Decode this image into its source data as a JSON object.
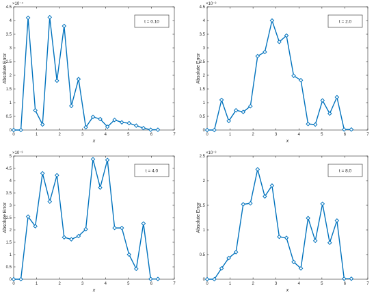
{
  "figure": {
    "colors": {
      "series": "#0072BD",
      "axis": "#262626",
      "background": "#ffffff"
    },
    "marker": "diamond"
  },
  "chart_data": [
    {
      "type": "line",
      "annotation": "t = 0.10",
      "xlabel": "x",
      "ylabel": "Absolute Error",
      "exponent_label": "×10⁻⁴",
      "xlim": [
        0,
        7
      ],
      "ylim": [
        0,
        4.5
      ],
      "xticks": [
        0,
        1,
        2,
        3,
        4,
        5,
        6,
        7
      ],
      "yticks": [
        0,
        0.5,
        1,
        1.5,
        2,
        2.5,
        3,
        3.5,
        4,
        4.5
      ],
      "ytick_labels": [
        "0",
        "0.5",
        "1",
        "1.5",
        "2",
        "2.5",
        "3",
        "3.5",
        "4",
        "4.5"
      ],
      "grid": false,
      "x": [
        0,
        0.314,
        0.628,
        0.942,
        1.257,
        1.571,
        1.885,
        2.199,
        2.513,
        2.827,
        3.142,
        3.456,
        3.77,
        4.084,
        4.398,
        4.712,
        5.027,
        5.341,
        5.655,
        5.969,
        6.283
      ],
      "y": [
        0,
        0,
        4.1,
        0.72,
        0.2,
        4.12,
        1.8,
        3.8,
        0.88,
        1.86,
        0.1,
        0.48,
        0.4,
        0.12,
        0.37,
        0.28,
        0.25,
        0.16,
        0.07,
        0.01,
        0.01
      ]
    },
    {
      "type": "line",
      "annotation": "t = 2.0",
      "xlabel": "x",
      "ylabel": "Absolute Error",
      "exponent_label": "×10⁻³",
      "xlim": [
        0,
        7
      ],
      "ylim": [
        0,
        4.5
      ],
      "xticks": [
        0,
        1,
        2,
        3,
        4,
        5,
        6,
        7
      ],
      "yticks": [
        0,
        0.5,
        1,
        1.5,
        2,
        2.5,
        3,
        3.5,
        4,
        4.5
      ],
      "ytick_labels": [
        "0",
        "0.5",
        "1",
        "1.5",
        "2",
        "2.5",
        "3",
        "3.5",
        "4",
        "4.5"
      ],
      "grid": false,
      "x": [
        0,
        0.314,
        0.628,
        0.942,
        1.257,
        1.571,
        1.885,
        2.199,
        2.513,
        2.827,
        3.142,
        3.456,
        3.77,
        4.084,
        4.398,
        4.712,
        5.027,
        5.341,
        5.655,
        5.969,
        6.283
      ],
      "y": [
        0,
        0,
        1.1,
        0.33,
        0.72,
        0.66,
        0.87,
        2.7,
        2.85,
        4.0,
        3.22,
        3.45,
        1.98,
        1.82,
        0.22,
        0.2,
        1.08,
        0.6,
        1.2,
        0.02,
        0.02
      ]
    },
    {
      "type": "line",
      "annotation": "t = 4.0",
      "xlabel": "x",
      "ylabel": "Absolute Error",
      "exponent_label": "×10⁻³",
      "xlim": [
        0,
        7
      ],
      "ylim": [
        0,
        5
      ],
      "xticks": [
        0,
        1,
        2,
        3,
        4,
        5,
        6,
        7
      ],
      "yticks": [
        0,
        0.5,
        1,
        1.5,
        2,
        2.5,
        3,
        3.5,
        4,
        4.5,
        5
      ],
      "ytick_labels": [
        "0",
        "0.5",
        "1",
        "1.5",
        "2",
        "2.5",
        "3",
        "3.5",
        "4",
        "4.5",
        "5"
      ],
      "grid": false,
      "x": [
        0,
        0.314,
        0.628,
        0.942,
        1.257,
        1.571,
        1.885,
        2.199,
        2.513,
        2.827,
        3.142,
        3.456,
        3.77,
        4.084,
        4.398,
        4.712,
        5.027,
        5.341,
        5.655,
        5.969,
        6.283
      ],
      "y": [
        0,
        0,
        2.54,
        2.15,
        4.3,
        3.15,
        4.22,
        1.7,
        1.62,
        1.75,
        2.03,
        4.87,
        3.72,
        4.84,
        2.08,
        2.08,
        1.0,
        0.42,
        2.26,
        0.01,
        0.01
      ]
    },
    {
      "type": "line",
      "annotation": "t = 8.0",
      "xlabel": "x",
      "ylabel": "Absolute Error",
      "exponent_label": "×10⁻³",
      "xlim": [
        0,
        7
      ],
      "ylim": [
        0,
        2.5
      ],
      "xticks": [
        0,
        1,
        2,
        3,
        4,
        5,
        6,
        7
      ],
      "yticks": [
        0,
        0.5,
        1,
        1.5,
        2,
        2.5
      ],
      "ytick_labels": [
        "0",
        "0.5",
        "1",
        "1.5",
        "2",
        "2.5"
      ],
      "grid": false,
      "x": [
        0,
        0.314,
        0.628,
        0.942,
        1.257,
        1.571,
        1.885,
        2.199,
        2.513,
        2.827,
        3.142,
        3.456,
        3.77,
        4.084,
        4.398,
        4.712,
        5.027,
        5.341,
        5.655,
        5.969,
        6.283
      ],
      "y": [
        0,
        0,
        0.22,
        0.43,
        0.55,
        1.52,
        1.54,
        2.23,
        1.68,
        1.9,
        0.86,
        0.84,
        0.35,
        0.22,
        1.24,
        0.78,
        1.53,
        0.74,
        1.19,
        0.01,
        0.01
      ]
    }
  ]
}
